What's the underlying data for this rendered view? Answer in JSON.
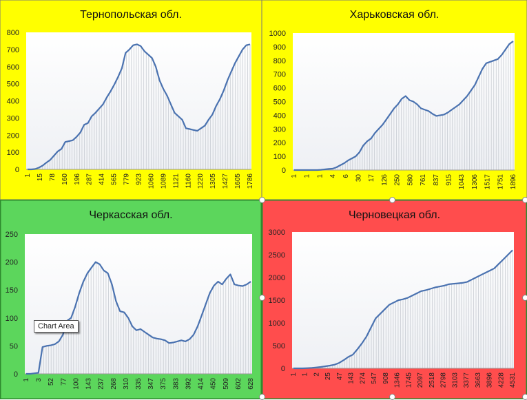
{
  "chart_data": [
    {
      "type": "area",
      "title": "Тернопольская обл.",
      "background": "#ffff00",
      "line_color": "#4a72b0",
      "categories": [
        "1",
        "15",
        "78",
        "160",
        "196",
        "287",
        "414",
        "565",
        "779",
        "923",
        "1060",
        "1089",
        "1121",
        "1160",
        "1220",
        "1305",
        "1427",
        "1605",
        "1786"
      ],
      "y_ticks": [
        "0",
        "100",
        "200",
        "300",
        "400",
        "500",
        "600",
        "700",
        "800"
      ],
      "ylim": [
        0,
        800
      ],
      "y": [
        0,
        0,
        2,
        10,
        22,
        40,
        55,
        80,
        105,
        120,
        160,
        165,
        170,
        190,
        215,
        260,
        270,
        310,
        330,
        355,
        380,
        420,
        455,
        495,
        540,
        590,
        680,
        700,
        725,
        730,
        720,
        690,
        670,
        650,
        600,
        520,
        470,
        430,
        380,
        330,
        310,
        290,
        240,
        235,
        230,
        225,
        240,
        255,
        290,
        320,
        370,
        410,
        460,
        520,
        570,
        620,
        660,
        700,
        725,
        730
      ]
    },
    {
      "type": "area",
      "title": "Харьковская обл.",
      "background": "#ffff00",
      "line_color": "#4a72b0",
      "categories": [
        "1",
        "1",
        "1",
        "4",
        "6",
        "30",
        "17",
        "126",
        "250",
        "580",
        "761",
        "837",
        "915",
        "1043",
        "1306",
        "1517",
        "1751",
        "1896"
      ],
      "y_ticks": [
        "0",
        "100",
        "200",
        "300",
        "400",
        "500",
        "600",
        "700",
        "800",
        "900",
        "1000"
      ],
      "ylim": [
        0,
        1000
      ],
      "y": [
        0,
        0,
        0,
        0,
        0,
        0,
        0,
        2,
        5,
        8,
        10,
        20,
        35,
        50,
        70,
        85,
        100,
        130,
        180,
        210,
        230,
        270,
        300,
        330,
        370,
        410,
        450,
        480,
        520,
        540,
        510,
        500,
        480,
        450,
        440,
        430,
        410,
        395,
        400,
        405,
        420,
        440,
        460,
        480,
        510,
        540,
        580,
        620,
        680,
        740,
        780,
        790,
        800,
        810,
        840,
        880,
        920,
        940
      ]
    },
    {
      "type": "area",
      "title": "Черкасская обл.",
      "background": "#5cd65c",
      "line_color": "#4a72b0",
      "categories": [
        "1",
        "3",
        "52",
        "77",
        "100",
        "143",
        "237",
        "268",
        "310",
        "335",
        "347",
        "375",
        "383",
        "392",
        "414",
        "450",
        "509",
        "602",
        "628"
      ],
      "y_ticks": [
        "0",
        "50",
        "100",
        "150",
        "200",
        "250"
      ],
      "ylim": [
        0,
        250
      ],
      "y": [
        0,
        0,
        1,
        2,
        48,
        50,
        51,
        53,
        58,
        70,
        95,
        100,
        120,
        145,
        165,
        180,
        190,
        200,
        196,
        185,
        180,
        160,
        130,
        112,
        110,
        100,
        85,
        78,
        80,
        75,
        70,
        65,
        63,
        62,
        60,
        55,
        56,
        58,
        60,
        58,
        62,
        70,
        85,
        105,
        125,
        145,
        158,
        165,
        160,
        170,
        178,
        160,
        158,
        157,
        160,
        165
      ]
    },
    {
      "type": "area",
      "title": "Черновецкая обл.",
      "background": "#ff4d4d",
      "line_color": "#4a72b0",
      "categories": [
        "1",
        "1",
        "2",
        "25",
        "47",
        "143",
        "274",
        "547",
        "908",
        "1346",
        "1745",
        "2097",
        "2518",
        "2798",
        "3103",
        "3377",
        "3663",
        "3896",
        "4228",
        "4531"
      ],
      "y_ticks": [
        "0",
        "500",
        "1000",
        "1500",
        "2000",
        "2500",
        "3000"
      ],
      "ylim": [
        0,
        3000
      ],
      "y": [
        0,
        0,
        0,
        5,
        10,
        20,
        30,
        45,
        60,
        80,
        120,
        180,
        250,
        300,
        420,
        550,
        700,
        900,
        1100,
        1200,
        1300,
        1400,
        1450,
        1500,
        1520,
        1550,
        1600,
        1650,
        1700,
        1720,
        1750,
        1780,
        1800,
        1820,
        1850,
        1860,
        1870,
        1880,
        1900,
        1950,
        2000,
        2050,
        2100,
        2150,
        2200,
        2300,
        2400,
        2500,
        2600
      ]
    }
  ],
  "tooltip": {
    "label": "Chart Area"
  }
}
